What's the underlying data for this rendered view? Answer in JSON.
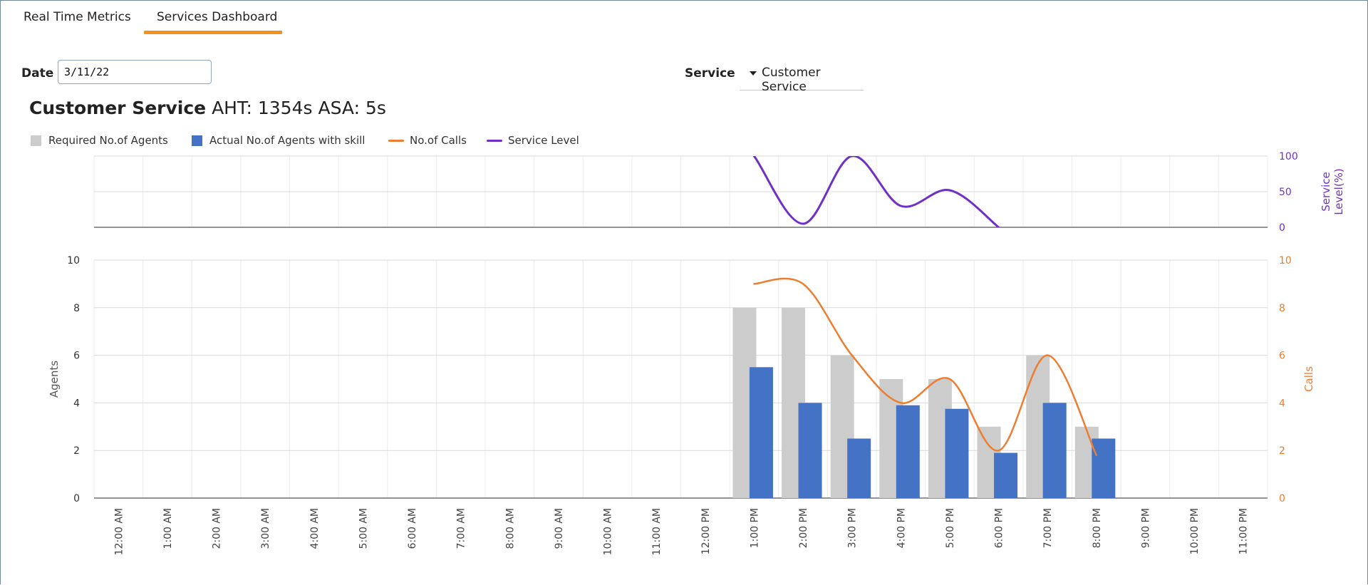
{
  "tabs": [
    {
      "label": "Real Time Metrics",
      "active": false
    },
    {
      "label": "Services Dashboard",
      "active": true
    }
  ],
  "filters": {
    "date_label": "Date",
    "date_value": "3/11/22",
    "service_label": "Service",
    "service_value": "Customer Service"
  },
  "header": {
    "service_name": "Customer Service",
    "metrics": "AHT: 1354s ASA: 5s"
  },
  "legend": [
    {
      "label": "Required No.of Agents",
      "color": "#cccccc",
      "kind": "box"
    },
    {
      "label": "Actual No.of Agents with skill",
      "color": "#4472c4",
      "kind": "box"
    },
    {
      "label": "No.of Calls",
      "color": "#ed7d31",
      "kind": "line"
    },
    {
      "label": "Service Level",
      "color": "#7030c8",
      "kind": "line"
    }
  ],
  "chart_data": {
    "type": "bar",
    "categories": [
      "12:00 AM",
      "1:00 AM",
      "2:00 AM",
      "3:00 AM",
      "4:00 AM",
      "5:00 AM",
      "6:00 AM",
      "7:00 AM",
      "8:00 AM",
      "9:00 AM",
      "10:00 AM",
      "11:00 AM",
      "12:00 PM",
      "1:00 PM",
      "2:00 PM",
      "3:00 PM",
      "4:00 PM",
      "5:00 PM",
      "6:00 PM",
      "7:00 PM",
      "8:00 PM",
      "9:00 PM",
      "10:00 PM",
      "11:00 PM"
    ],
    "series": [
      {
        "name": "Required No.of Agents",
        "type": "bar",
        "axis": "agents",
        "values": [
          0,
          0,
          0,
          0,
          0,
          0,
          0,
          0,
          0,
          0,
          0,
          0,
          0,
          8,
          8,
          6,
          5,
          5,
          3,
          6,
          3,
          0,
          0,
          0
        ]
      },
      {
        "name": "Actual No.of Agents with skill",
        "type": "bar",
        "axis": "agents",
        "values": [
          0,
          0,
          0,
          0,
          0,
          0,
          0,
          0,
          0,
          0,
          0,
          0,
          0,
          5.5,
          4,
          2.5,
          3.9,
          3.75,
          1.9,
          4,
          2.5,
          0,
          0,
          0
        ]
      },
      {
        "name": "No.of Calls",
        "type": "line",
        "axis": "calls",
        "values": [
          null,
          null,
          null,
          null,
          null,
          null,
          null,
          null,
          null,
          null,
          null,
          null,
          null,
          9,
          9,
          6,
          4,
          5,
          2,
          6,
          1.8,
          null,
          null,
          null
        ]
      },
      {
        "name": "Service Level",
        "type": "line",
        "axis": "service_level",
        "values": [
          null,
          null,
          null,
          null,
          null,
          null,
          null,
          null,
          null,
          null,
          null,
          null,
          null,
          100,
          5,
          100,
          30,
          52,
          0,
          null,
          null,
          null,
          null,
          null
        ]
      }
    ],
    "axes": {
      "agents": {
        "label": "Agents",
        "range": [
          0,
          10
        ],
        "ticks": [
          0,
          2,
          4,
          6,
          8,
          10
        ]
      },
      "calls": {
        "label": "Calls",
        "range": [
          0,
          10
        ],
        "ticks": [
          0,
          2,
          4,
          6,
          8,
          10
        ]
      },
      "service_level": {
        "label": "Service Level(%)",
        "label_lines": [
          "Service",
          "Level(%)"
        ],
        "range": [
          0,
          100
        ],
        "ticks": [
          0,
          50,
          100
        ]
      }
    },
    "colors": {
      "required": "#cccccc",
      "actual": "#4472c4",
      "calls": "#ed7d31",
      "service_level": "#7030c8"
    }
  }
}
